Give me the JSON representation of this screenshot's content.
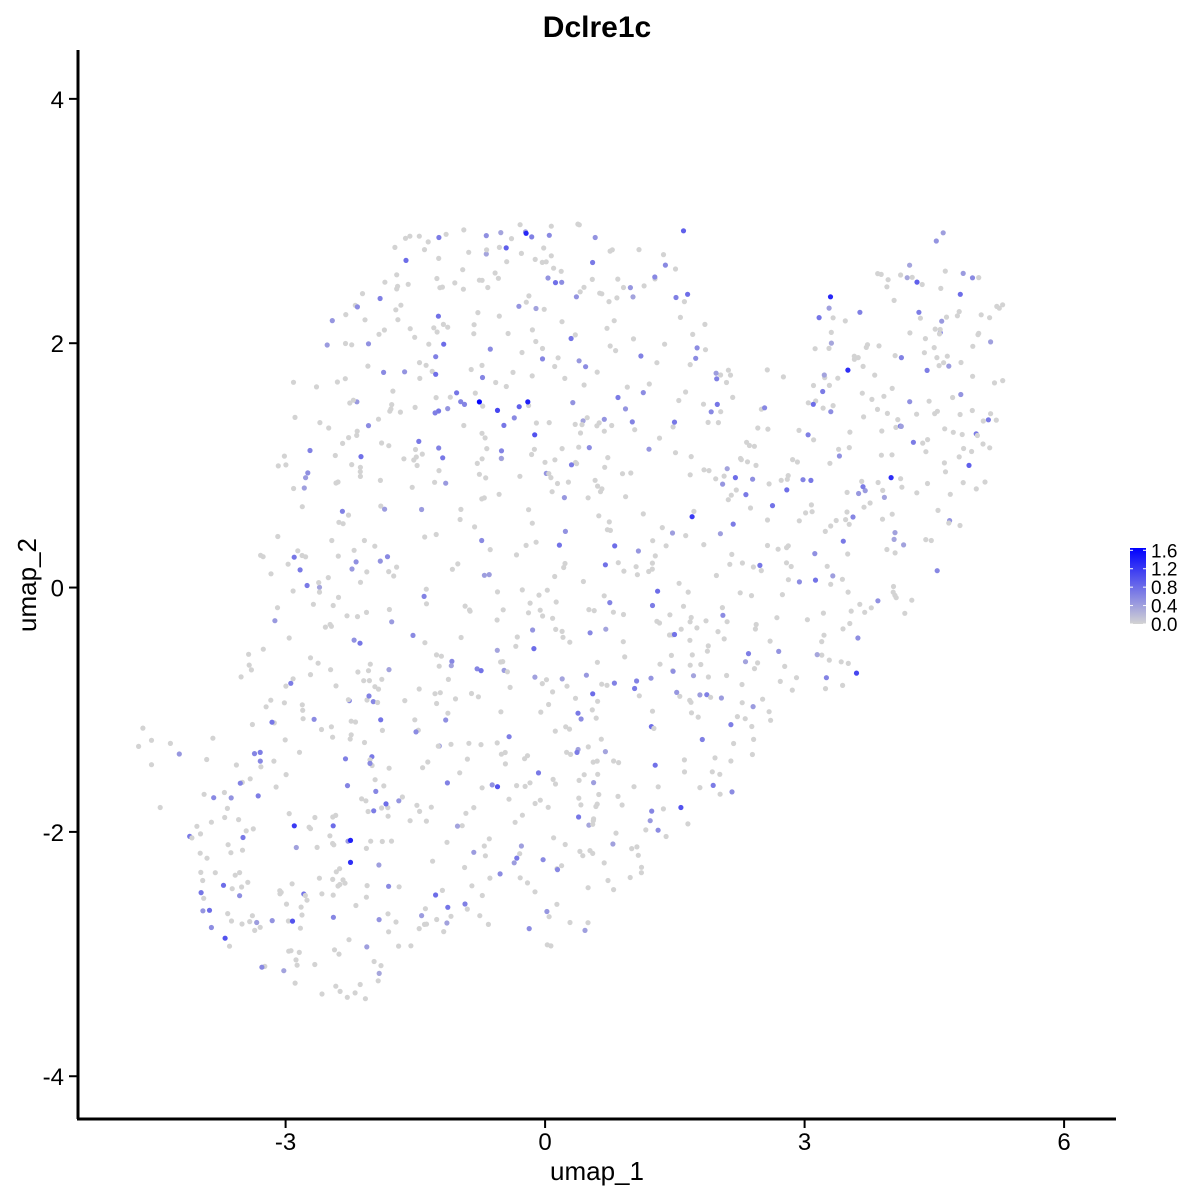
{
  "chart_data": {
    "type": "scatter",
    "title": "Dclre1c",
    "xlabel": "umap_1",
    "ylabel": "umap_2",
    "xlim": [
      -5.4,
      6.6
    ],
    "ylim": [
      -4.35,
      4.4
    ],
    "xticks": [
      -3,
      0,
      3,
      6
    ],
    "xtick_labels": [
      "-3",
      "0",
      "3",
      "6"
    ],
    "yticks": [
      -4,
      -2,
      0,
      2,
      4
    ],
    "ytick_labels": [
      "-4",
      "-2",
      "0",
      "2",
      "4"
    ],
    "grid": false,
    "legend": {
      "placement": "right",
      "type": "colorbar",
      "min": 0.0,
      "max": 1.65,
      "ticks": [
        0.0,
        0.4,
        0.8,
        1.2,
        1.6
      ],
      "tick_labels": [
        "0.0",
        "0.4",
        "0.8",
        "1.2",
        "1.6"
      ]
    },
    "colors": {
      "low": "#d3d3d3",
      "high": "#0000ff"
    },
    "points_highlighted": [
      {
        "x": -0.76,
        "y": 1.52,
        "v": 1.6
      },
      {
        "x": -0.2,
        "y": 1.52,
        "v": 1.4
      },
      {
        "x": -0.22,
        "y": 2.9,
        "v": 1.35
      },
      {
        "x": 3.3,
        "y": 2.38,
        "v": 1.35
      },
      {
        "x": 3.5,
        "y": 1.78,
        "v": 1.3
      },
      {
        "x": 4.0,
        "y": 0.9,
        "v": 1.3
      },
      {
        "x": -2.25,
        "y": -2.07,
        "v": 1.4
      },
      {
        "x": -2.25,
        "y": -2.25,
        "v": 1.3
      },
      {
        "x": -2.9,
        "y": -1.95,
        "v": 1.2
      },
      {
        "x": 1.7,
        "y": 0.58,
        "v": 1.2
      },
      {
        "x": 3.6,
        "y": -0.7,
        "v": 1.1
      },
      {
        "x": -0.55,
        "y": 1.45,
        "v": 1.1
      },
      {
        "x": -0.12,
        "y": 1.25,
        "v": 1.0
      },
      {
        "x": 1.57,
        "y": -1.8,
        "v": 1.0
      },
      {
        "x": -3.7,
        "y": -2.87,
        "v": 1.0
      },
      {
        "x": -2.92,
        "y": -2.73,
        "v": 1.0
      },
      {
        "x": -0.55,
        "y": -1.63,
        "v": 1.0
      },
      {
        "x": 1.6,
        "y": 2.92,
        "v": 0.9
      },
      {
        "x": -0.3,
        "y": 1.48,
        "v": 0.9
      },
      {
        "x": -0.45,
        "y": 2.78,
        "v": 0.9
      },
      {
        "x": 4.9,
        "y": 1.0,
        "v": 0.9
      },
      {
        "x": 4.3,
        "y": 2.5,
        "v": 0.9
      },
      {
        "x": 3.1,
        "y": 1.5,
        "v": 0.8
      },
      {
        "x": -2.45,
        "y": -1.95,
        "v": 0.8
      },
      {
        "x": -0.13,
        "y": -0.5,
        "v": 0.8
      },
      {
        "x": 1.3,
        "y": -0.03,
        "v": 0.8
      },
      {
        "x": 0.55,
        "y": -0.87,
        "v": 0.8
      },
      {
        "x": 2.2,
        "y": 0.9,
        "v": 0.8
      },
      {
        "x": 4.8,
        "y": 2.4,
        "v": 0.8
      }
    ],
    "background_point_count": 1200,
    "background_point_value_range": [
      0.0,
      0.8
    ]
  }
}
